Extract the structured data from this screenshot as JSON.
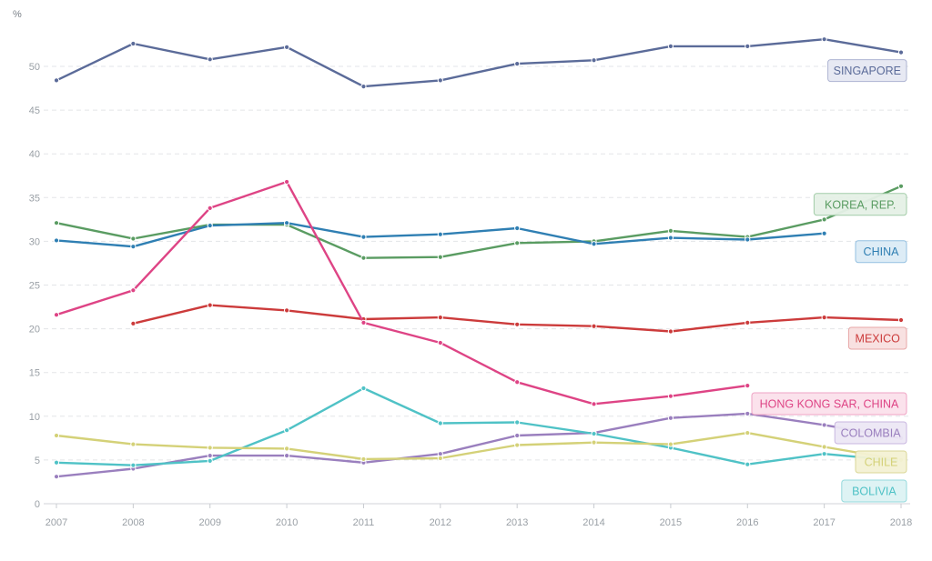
{
  "chart_data": {
    "type": "line",
    "unit_label": "%",
    "x": [
      "2007",
      "2008",
      "2009",
      "2010",
      "2011",
      "2012",
      "2013",
      "2014",
      "2015",
      "2016",
      "2017",
      "2018"
    ],
    "x_ticks": [
      "2007",
      "2008",
      "2009",
      "2010",
      "2011",
      "2012",
      "2013",
      "2014",
      "2015",
      "2016",
      "2017",
      "2018"
    ],
    "y_ticks": [
      "0",
      "5",
      "10",
      "15",
      "20",
      "25",
      "30",
      "35",
      "40",
      "45",
      "50"
    ],
    "ylim": [
      0,
      55
    ],
    "grid": true,
    "series": [
      {
        "name": "SINGAPORE",
        "color": "#5b6b99",
        "label_bg": "#e6e8f3",
        "label_border": "#aab0d0",
        "values": [
          48.4,
          52.6,
          50.8,
          52.2,
          47.7,
          48.4,
          50.3,
          50.7,
          52.3,
          52.3,
          53.1,
          51.6
        ]
      },
      {
        "name": "KOREA, REP.",
        "color": "#5a9c62",
        "label_bg": "#e5f1e6",
        "label_border": "#9dcaa3",
        "values": [
          32.1,
          30.3,
          31.9,
          31.9,
          28.1,
          28.2,
          29.8,
          30.0,
          31.2,
          30.5,
          32.5,
          36.3
        ]
      },
      {
        "name": "CHINA",
        "color": "#2f7fb3",
        "label_bg": "#dcebf6",
        "label_border": "#8fbde0",
        "values": [
          30.1,
          29.4,
          31.8,
          32.1,
          30.5,
          30.8,
          31.5,
          29.7,
          30.4,
          30.2,
          30.9,
          null
        ]
      },
      {
        "name": "MEXICO",
        "color": "#cc3b3b",
        "label_bg": "#f8e0e0",
        "label_border": "#e6a3a3",
        "values": [
          null,
          20.6,
          22.7,
          22.1,
          21.1,
          21.3,
          20.5,
          20.3,
          19.7,
          20.7,
          21.3,
          21.0
        ]
      },
      {
        "name": "HONG KONG SAR, CHINA",
        "color": "#de4485",
        "label_bg": "#fbe1ec",
        "label_border": "#ef9fc1",
        "values": [
          21.6,
          24.4,
          33.8,
          36.8,
          20.7,
          18.4,
          13.9,
          11.4,
          12.3,
          13.5,
          null,
          null
        ]
      },
      {
        "name": "COLOMBIA",
        "color": "#9a7fbe",
        "label_bg": "#ede7f5",
        "label_border": "#c6b3df",
        "values": [
          3.1,
          4.0,
          5.5,
          5.5,
          4.7,
          5.7,
          7.8,
          8.1,
          9.8,
          10.3,
          9.0,
          7.5
        ]
      },
      {
        "name": "BOLIVIA",
        "color": "#4fc2c6",
        "label_bg": "#ddf3f4",
        "label_border": "#8fd8db",
        "values": [
          4.7,
          4.4,
          4.9,
          8.4,
          13.2,
          9.2,
          9.3,
          8.0,
          6.4,
          4.5,
          5.7,
          4.9
        ]
      },
      {
        "name": "CHILE",
        "color": "#d4d178",
        "label_bg": "#f4f2d4",
        "label_border": "#d9d592",
        "values": [
          7.8,
          6.8,
          6.4,
          6.3,
          5.1,
          5.2,
          6.7,
          7.0,
          6.8,
          8.1,
          6.5,
          5.0
        ]
      }
    ]
  }
}
